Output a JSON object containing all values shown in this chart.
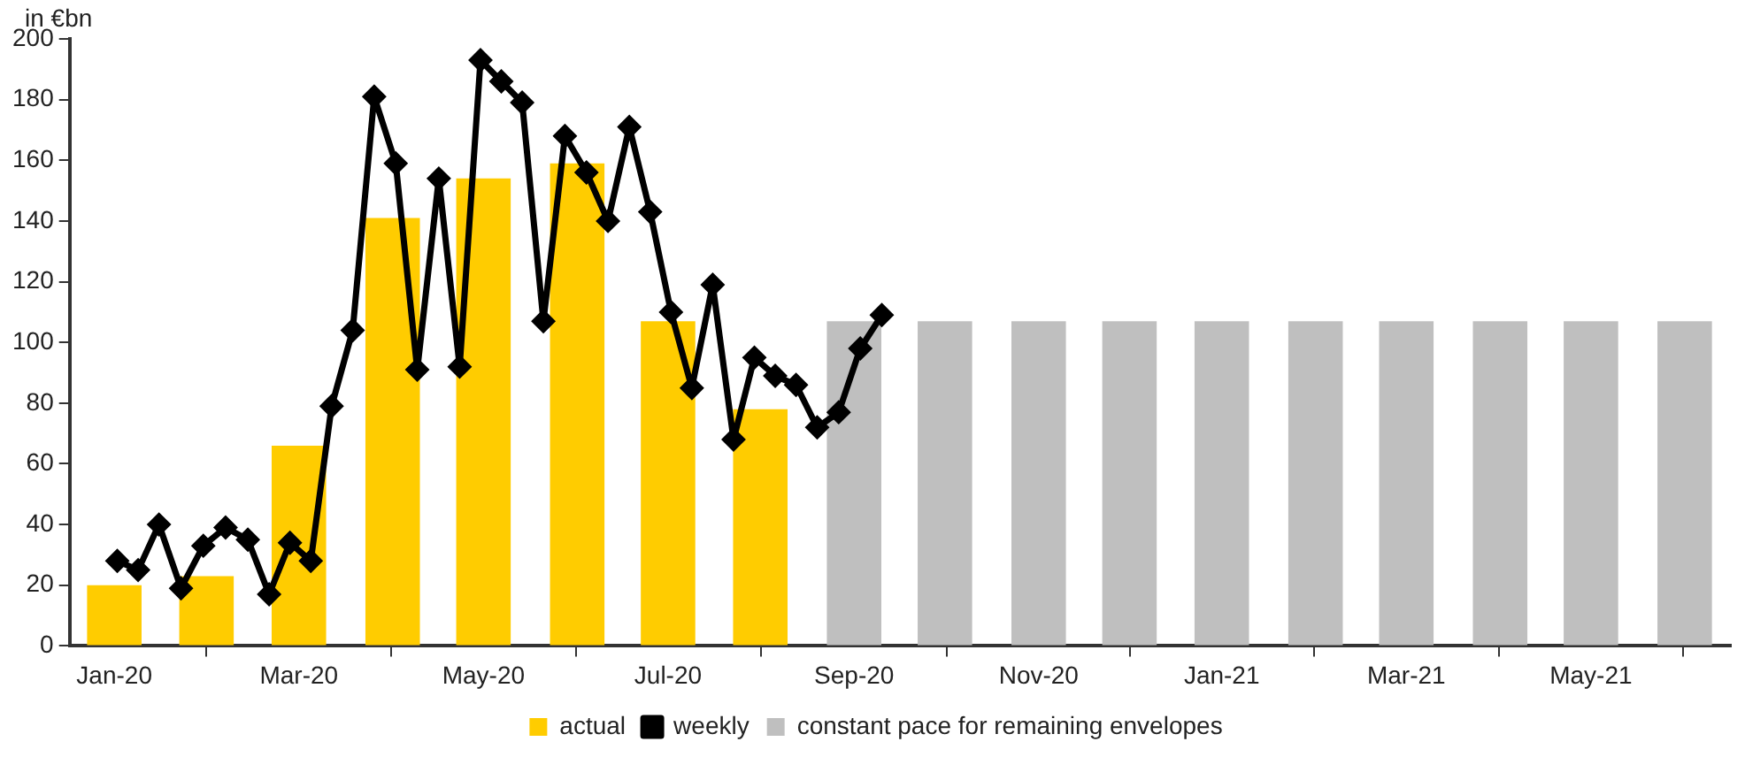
{
  "chart_data": {
    "type": "bar",
    "ylabel": "in €bn",
    "xlim": [
      "2020-01-01",
      "2021-07-01"
    ],
    "xticks": [
      {
        "value": "2020-01-16",
        "label": "Jan-20"
      },
      {
        "value": "2020-03-16",
        "label": "Mar-20"
      },
      {
        "value": "2020-05-16",
        "label": "May-20"
      },
      {
        "value": "2020-07-16",
        "label": "Jul-20"
      },
      {
        "value": "2020-09-16",
        "label": "Sep-20"
      },
      {
        "value": "2020-11-16",
        "label": "Nov-20"
      },
      {
        "value": "2021-01-16",
        "label": "Jan-21"
      },
      {
        "value": "2021-03-16",
        "label": "Mar-21"
      },
      {
        "value": "2021-05-16",
        "label": "May-21"
      }
    ],
    "ylim": [
      0,
      200
    ],
    "yticks": [
      0,
      20,
      40,
      60,
      80,
      100,
      120,
      140,
      160,
      180,
      200
    ],
    "grid": false,
    "legend": "bottom",
    "series": [
      {
        "name": "actual",
        "type": "bar",
        "color": "#ffcc00",
        "x": [
          "2020-01-16",
          "2020-02-15",
          "2020-03-16",
          "2020-04-16",
          "2020-05-16",
          "2020-06-16",
          "2020-07-16",
          "2020-08-16"
        ],
        "values": [
          20,
          23,
          66,
          141,
          154,
          159,
          107,
          78
        ]
      },
      {
        "name": "weekly",
        "type": "line",
        "color": "#000000",
        "marker": "diamond",
        "x": [
          "2020-01-17",
          "2020-01-24",
          "2020-01-31",
          "2020-02-07",
          "2020-02-14",
          "2020-02-21",
          "2020-02-28",
          "2020-03-06",
          "2020-03-13",
          "2020-03-20",
          "2020-03-27",
          "2020-04-03",
          "2020-04-10",
          "2020-04-17",
          "2020-04-24",
          "2020-05-01",
          "2020-05-08",
          "2020-05-15",
          "2020-05-22",
          "2020-05-29",
          "2020-06-05",
          "2020-06-12",
          "2020-06-19",
          "2020-06-26",
          "2020-07-03",
          "2020-07-10",
          "2020-07-17",
          "2020-07-24",
          "2020-07-31",
          "2020-08-07",
          "2020-08-14",
          "2020-08-21",
          "2020-08-28",
          "2020-09-04",
          "2020-09-11",
          "2020-09-18",
          "2020-09-25"
        ],
        "values": [
          28,
          25,
          40,
          19,
          33,
          39,
          35,
          17,
          34,
          28,
          79,
          104,
          181,
          159,
          91,
          154,
          92,
          193,
          186,
          179,
          107,
          168,
          156,
          140,
          171,
          143,
          110,
          85,
          119,
          68,
          95,
          89,
          86,
          72,
          77,
          98,
          109
        ]
      },
      {
        "name": "constant pace for remaining envelopes",
        "type": "bar",
        "color": "#bfbfbf",
        "x": [
          "2020-09-16",
          "2020-10-16",
          "2020-11-16",
          "2020-12-16",
          "2021-01-16",
          "2021-02-15",
          "2021-03-16",
          "2021-04-16",
          "2021-05-16",
          "2021-06-16"
        ],
        "values": [
          107,
          107,
          107,
          107,
          107,
          107,
          107,
          107,
          107,
          107
        ]
      }
    ]
  }
}
